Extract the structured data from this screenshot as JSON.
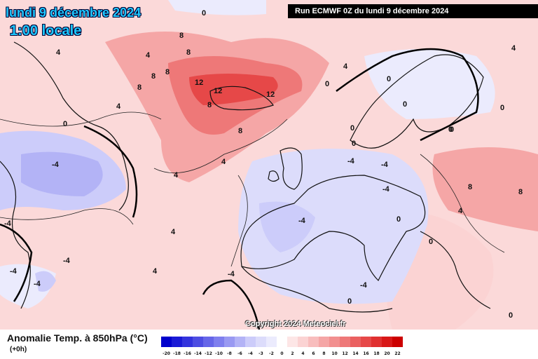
{
  "header": {
    "date": "lundi 9 décembre 2024",
    "time": "1:00 locale",
    "run": "Run ECMWF 0Z du lundi 9 décembre 2024"
  },
  "footer": {
    "copyright": "Copyright 2024 Meteociel.fr",
    "legend_title": "Anomalie Temp. à 850hPa (°C)",
    "legend_subtitle": "(+0h)"
  },
  "legend": {
    "ticks": [
      "-20",
      "-18",
      "-16",
      "-14",
      "-12",
      "-10",
      "-8",
      "-6",
      "-4",
      "-3",
      "-2",
      "0",
      "2",
      "4",
      "6",
      "8",
      "10",
      "12",
      "14",
      "16",
      "18",
      "20",
      "22"
    ],
    "colors": [
      "#0000cc",
      "#1a1ad6",
      "#3333dd",
      "#4d4de2",
      "#6666e8",
      "#7f7fee",
      "#9999f2",
      "#b3b3f6",
      "#ccccfa",
      "#dcdcfb",
      "#ebebfd",
      "#ffffff",
      "#fde6e6",
      "#fbd3d3",
      "#f8bdbd",
      "#f5a6a6",
      "#f28f8f",
      "#ee7878",
      "#ea6060",
      "#e64848",
      "#e03030",
      "#d81818",
      "#cc0000"
    ]
  },
  "contour_labels": [
    {
      "text": "0"
    },
    {
      "text": "4"
    },
    {
      "text": "8"
    },
    {
      "text": "4"
    },
    {
      "text": "8"
    },
    {
      "text": "8"
    },
    {
      "text": "8"
    },
    {
      "text": "8"
    },
    {
      "text": "12"
    },
    {
      "text": "12"
    },
    {
      "text": "12"
    },
    {
      "text": "8"
    },
    {
      "text": "8"
    },
    {
      "text": "4"
    },
    {
      "text": "0"
    },
    {
      "text": "0"
    },
    {
      "text": "4"
    },
    {
      "text": "0"
    },
    {
      "text": "0"
    },
    {
      "text": "0"
    },
    {
      "text": "0"
    },
    {
      "text": "0"
    },
    {
      "text": "-4"
    },
    {
      "text": "4"
    },
    {
      "text": "-4"
    },
    {
      "text": "4"
    },
    {
      "text": "-4"
    },
    {
      "text": "0"
    },
    {
      "text": "-4"
    },
    {
      "text": "-4"
    },
    {
      "text": "-4"
    },
    {
      "text": "-4"
    },
    {
      "text": "0"
    },
    {
      "text": "-4"
    },
    {
      "text": "-4"
    },
    {
      "text": "0"
    },
    {
      "text": "8"
    },
    {
      "text": "8"
    },
    {
      "text": "4"
    },
    {
      "text": "4"
    },
    {
      "text": "-4"
    },
    {
      "text": "0"
    },
    {
      "text": "-4"
    },
    {
      "text": "4"
    },
    {
      "text": "4"
    },
    {
      "text": "0"
    },
    {
      "text": "0"
    }
  ]
}
